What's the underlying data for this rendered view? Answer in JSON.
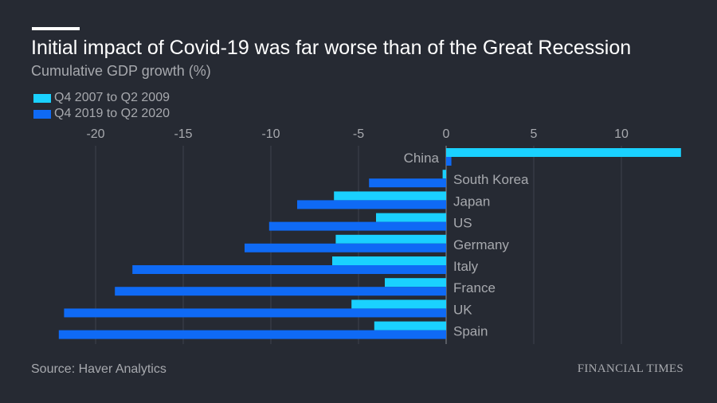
{
  "header": {
    "title": "Initial impact of Covid-19 was far worse than of the Great Recession",
    "subtitle": "Cumulative GDP growth (%)"
  },
  "footer": {
    "source": "Source: Haver Analytics",
    "brand": "FINANCIAL TIMES"
  },
  "colors": {
    "background": "#262a33",
    "series1": "#1ad1ff",
    "series2": "#0f6af5",
    "text_muted": "#a7a9ae"
  },
  "chart_data": {
    "type": "bar",
    "orientation": "horizontal",
    "title": "Initial impact of Covid-19 was far worse than of the Great Recession",
    "subtitle": "Cumulative GDP growth (%)",
    "categories": [
      "China",
      "South Korea",
      "Japan",
      "US",
      "Germany",
      "Italy",
      "France",
      "UK",
      "Spain"
    ],
    "series": [
      {
        "name": "Q4 2007 to Q2 2009",
        "color": "#1ad1ff",
        "values": [
          13.4,
          -0.2,
          -6.4,
          -4.0,
          -6.3,
          -6.5,
          -3.5,
          -5.4,
          -4.1
        ]
      },
      {
        "name": "Q4 2019 to Q2 2020",
        "color": "#0f6af5",
        "values": [
          0.3,
          -4.4,
          -8.5,
          -10.1,
          -11.5,
          -17.9,
          -18.9,
          -21.8,
          -22.1
        ]
      }
    ],
    "xlim": [
      -22.5,
      13.5
    ],
    "xticks": [
      -20,
      -15,
      -10,
      -5,
      0,
      5,
      10
    ],
    "xtick_labels": [
      "-20",
      "-15",
      "-10",
      "-5",
      "0",
      "5",
      "10"
    ],
    "grid": true,
    "legend_position": "top-left",
    "xlabel": "",
    "ylabel": ""
  }
}
